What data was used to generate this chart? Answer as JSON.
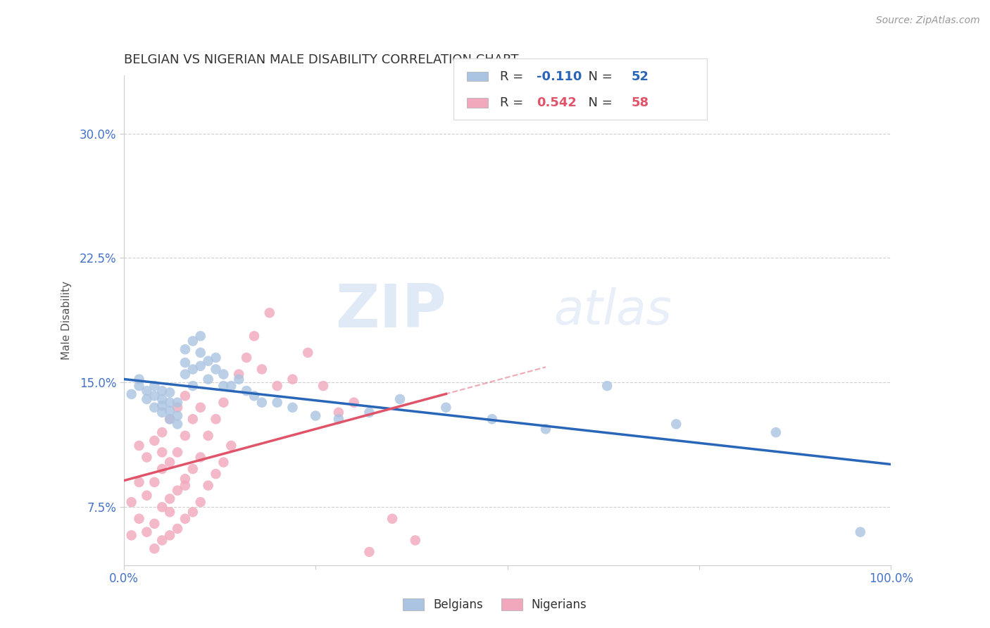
{
  "title": "BELGIAN VS NIGERIAN MALE DISABILITY CORRELATION CHART",
  "source": "Source: ZipAtlas.com",
  "ylabel": "Male Disability",
  "xlim": [
    0.0,
    1.0
  ],
  "ylim": [
    0.04,
    0.335
  ],
  "yticks": [
    0.075,
    0.15,
    0.225,
    0.3
  ],
  "ytick_labels": [
    "7.5%",
    "15.0%",
    "22.5%",
    "30.0%"
  ],
  "xticks": [
    0.0,
    0.25,
    0.5,
    0.75,
    1.0
  ],
  "xtick_labels": [
    "0.0%",
    "",
    "",
    "",
    "100.0%"
  ],
  "belgian_color": "#aac4e2",
  "nigerian_color": "#f2a8bc",
  "belgian_line_color": "#2966b8",
  "nigerian_line_color": "#e0546a",
  "R_belgian": -0.11,
  "N_belgian": 52,
  "R_nigerian": 0.542,
  "N_nigerian": 58,
  "watermark_zip": "ZIP",
  "watermark_atlas": "atlas",
  "legend_belgian": "Belgians",
  "legend_nigerian": "Nigerians",
  "background_color": "#ffffff",
  "grid_color": "#d0d0d0",
  "title_color": "#333333",
  "tick_color": "#4472c4",
  "belgian_x": [
    0.01,
    0.02,
    0.02,
    0.03,
    0.03,
    0.04,
    0.04,
    0.04,
    0.05,
    0.05,
    0.05,
    0.05,
    0.06,
    0.06,
    0.06,
    0.06,
    0.07,
    0.07,
    0.07,
    0.08,
    0.08,
    0.08,
    0.09,
    0.09,
    0.09,
    0.1,
    0.1,
    0.1,
    0.11,
    0.11,
    0.12,
    0.12,
    0.13,
    0.13,
    0.14,
    0.15,
    0.16,
    0.17,
    0.18,
    0.2,
    0.22,
    0.25,
    0.28,
    0.32,
    0.36,
    0.42,
    0.48,
    0.55,
    0.63,
    0.72,
    0.85,
    0.96
  ],
  "belgian_y": [
    0.143,
    0.148,
    0.152,
    0.14,
    0.145,
    0.135,
    0.142,
    0.148,
    0.132,
    0.136,
    0.14,
    0.145,
    0.128,
    0.133,
    0.138,
    0.144,
    0.125,
    0.13,
    0.138,
    0.155,
    0.162,
    0.17,
    0.148,
    0.158,
    0.175,
    0.16,
    0.168,
    0.178,
    0.152,
    0.163,
    0.158,
    0.165,
    0.148,
    0.155,
    0.148,
    0.152,
    0.145,
    0.142,
    0.138,
    0.138,
    0.135,
    0.13,
    0.128,
    0.132,
    0.14,
    0.135,
    0.128,
    0.122,
    0.148,
    0.125,
    0.12,
    0.06
  ],
  "nigerian_x": [
    0.01,
    0.01,
    0.02,
    0.02,
    0.02,
    0.03,
    0.03,
    0.03,
    0.04,
    0.04,
    0.04,
    0.05,
    0.05,
    0.05,
    0.05,
    0.06,
    0.06,
    0.06,
    0.06,
    0.07,
    0.07,
    0.07,
    0.07,
    0.08,
    0.08,
    0.08,
    0.08,
    0.09,
    0.09,
    0.09,
    0.1,
    0.1,
    0.1,
    0.11,
    0.11,
    0.12,
    0.12,
    0.13,
    0.13,
    0.14,
    0.15,
    0.16,
    0.17,
    0.18,
    0.19,
    0.2,
    0.22,
    0.24,
    0.26,
    0.28,
    0.3,
    0.32,
    0.35,
    0.38,
    0.04,
    0.05,
    0.06,
    0.08
  ],
  "nigerian_y": [
    0.058,
    0.078,
    0.068,
    0.09,
    0.112,
    0.06,
    0.082,
    0.105,
    0.065,
    0.09,
    0.115,
    0.055,
    0.075,
    0.098,
    0.12,
    0.058,
    0.08,
    0.102,
    0.128,
    0.062,
    0.085,
    0.108,
    0.135,
    0.068,
    0.092,
    0.118,
    0.142,
    0.072,
    0.098,
    0.128,
    0.078,
    0.105,
    0.135,
    0.088,
    0.118,
    0.095,
    0.128,
    0.102,
    0.138,
    0.112,
    0.155,
    0.165,
    0.178,
    0.158,
    0.192,
    0.148,
    0.152,
    0.168,
    0.148,
    0.132,
    0.138,
    0.048,
    0.068,
    0.055,
    0.05,
    0.108,
    0.072,
    0.088
  ]
}
